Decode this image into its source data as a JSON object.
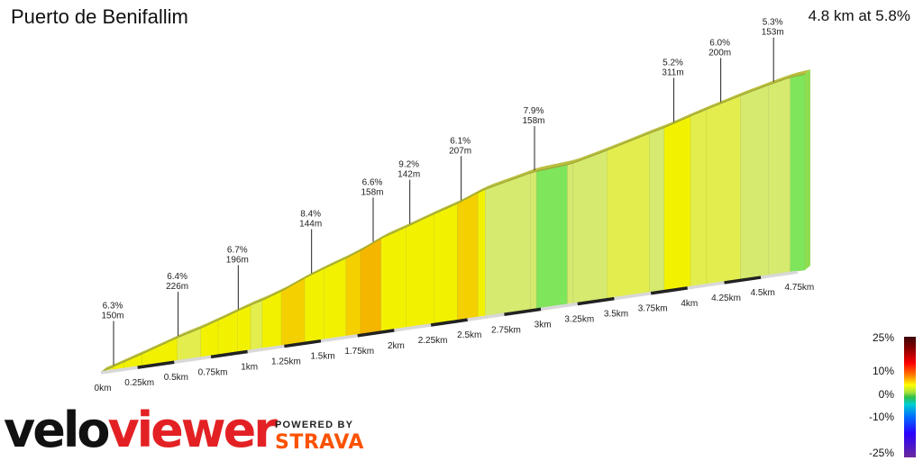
{
  "header": {
    "title": "Puerto de Benifallim",
    "summary": "4.8 km at 5.8%"
  },
  "brand": {
    "velo": "velo",
    "viewer": "viewer",
    "powered_by": "POWERED BY",
    "strava": "STRAVA"
  },
  "legend": {
    "labels": [
      "25%",
      "10%",
      "0%",
      "-10%",
      "-25%"
    ]
  },
  "chart_data": {
    "type": "area",
    "subtype": "3d-elevation-profile",
    "title": "Puerto de Benifallim",
    "x_unit": "km",
    "x_range": [
      0,
      4.8
    ],
    "x_ticks": [
      "0km",
      "0.25km",
      "0.5km",
      "0.75km",
      "1km",
      "1.25km",
      "1.5km",
      "1.75km",
      "2km",
      "2.25km",
      "2.5km",
      "2.75km",
      "3km",
      "3.25km",
      "3.5km",
      "3.75km",
      "4km",
      "4.25km",
      "4.5km",
      "4.75km"
    ],
    "segments": [
      {
        "distance_m": 150,
        "grade": 6.3
      },
      {
        "distance_m": 226,
        "grade": 6.4
      },
      {
        "distance_m": 196,
        "grade": 6.7
      },
      {
        "distance_m": 144,
        "grade": 8.4
      },
      {
        "distance_m": 158,
        "grade": 6.6
      },
      {
        "distance_m": 142,
        "grade": 9.2
      },
      {
        "distance_m": 207,
        "grade": 6.1
      },
      {
        "distance_m": 158,
        "grade": 7.9
      },
      {
        "distance_m": 311,
        "grade": 5.2
      },
      {
        "distance_m": 200,
        "grade": 6.0
      },
      {
        "distance_m": 153,
        "grade": 5.3
      }
    ],
    "segment_labels": [
      {
        "grade": "6.3%",
        "dist": "150m",
        "at_km": 0.08
      },
      {
        "grade": "6.4%",
        "dist": "226m",
        "at_km": 0.52
      },
      {
        "grade": "6.7%",
        "dist": "196m",
        "at_km": 0.93
      },
      {
        "grade": "8.4%",
        "dist": "144m",
        "at_km": 1.43
      },
      {
        "grade": "6.6%",
        "dist": "158m",
        "at_km": 1.85
      },
      {
        "grade": "9.2%",
        "dist": "142m",
        "at_km": 2.1
      },
      {
        "grade": "6.1%",
        "dist": "207m",
        "at_km": 2.45
      },
      {
        "grade": "7.9%",
        "dist": "158m",
        "at_km": 2.95
      },
      {
        "grade": "5.2%",
        "dist": "311m",
        "at_km": 3.9
      },
      {
        "grade": "6.0%",
        "dist": "200m",
        "at_km": 4.22
      },
      {
        "grade": "5.3%",
        "dist": "153m",
        "at_km": 4.58
      }
    ],
    "slices": [
      {
        "km": [
          0.0,
          0.08
        ],
        "grade": 5.6
      },
      {
        "km": [
          0.08,
          0.16
        ],
        "grade": 6.3
      },
      {
        "km": [
          0.16,
          0.28
        ],
        "grade": 6.0
      },
      {
        "km": [
          0.28,
          0.52
        ],
        "grade": 6.4
      },
      {
        "km": [
          0.52,
          0.68
        ],
        "grade": 5.4
      },
      {
        "km": [
          0.68,
          0.8
        ],
        "grade": 6.4
      },
      {
        "km": [
          0.8,
          0.93
        ],
        "grade": 6.7
      },
      {
        "km": [
          0.93,
          1.02
        ],
        "grade": 6.3
      },
      {
        "km": [
          1.02,
          1.1
        ],
        "grade": 5.4
      },
      {
        "km": [
          1.1,
          1.23
        ],
        "grade": 6.8
      },
      {
        "km": [
          1.23,
          1.39
        ],
        "grade": 8.4
      },
      {
        "km": [
          1.39,
          1.52
        ],
        "grade": 7.2
      },
      {
        "km": [
          1.52,
          1.67
        ],
        "grade": 6.6
      },
      {
        "km": [
          1.67,
          1.77
        ],
        "grade": 7.8
      },
      {
        "km": [
          1.77,
          1.91
        ],
        "grade": 9.2
      },
      {
        "km": [
          1.91,
          2.08
        ],
        "grade": 6.2
      },
      {
        "km": [
          2.08,
          2.27
        ],
        "grade": 6.6
      },
      {
        "km": [
          2.27,
          2.43
        ],
        "grade": 6.1
      },
      {
        "km": [
          2.43,
          2.57
        ],
        "grade": 7.9
      },
      {
        "km": [
          2.57,
          2.62
        ],
        "grade": 6.4
      },
      {
        "km": [
          2.62,
          2.93
        ],
        "grade": 4.4
      },
      {
        "km": [
          2.93,
          2.97
        ],
        "grade": 2.6
      },
      {
        "km": [
          2.97,
          3.18
        ],
        "grade": 1.4
      },
      {
        "km": [
          3.18,
          3.22
        ],
        "grade": 2.6
      },
      {
        "km": [
          3.22,
          3.45
        ],
        "grade": 4.8
      },
      {
        "km": [
          3.45,
          3.74
        ],
        "grade": 5.2
      },
      {
        "km": [
          3.74,
          3.84
        ],
        "grade": 4.9
      },
      {
        "km": [
          3.84,
          4.02
        ],
        "grade": 6.0
      },
      {
        "km": [
          4.02,
          4.13
        ],
        "grade": 5.6
      },
      {
        "km": [
          4.13,
          4.36
        ],
        "grade": 5.3
      },
      {
        "km": [
          4.36,
          4.55
        ],
        "grade": 4.8
      },
      {
        "km": [
          4.55,
          4.7
        ],
        "grade": 4.2
      },
      {
        "km": [
          4.7,
          4.8
        ],
        "grade": 1.5
      }
    ],
    "colors": {
      "very_easy": "#7fe55a",
      "easy": "#d5ea6e",
      "moderate": "#e3ee4e",
      "hard": "#f2f200",
      "harder": "#f5d000",
      "steep": "#f5b600",
      "edge": "#b9be3e"
    }
  }
}
